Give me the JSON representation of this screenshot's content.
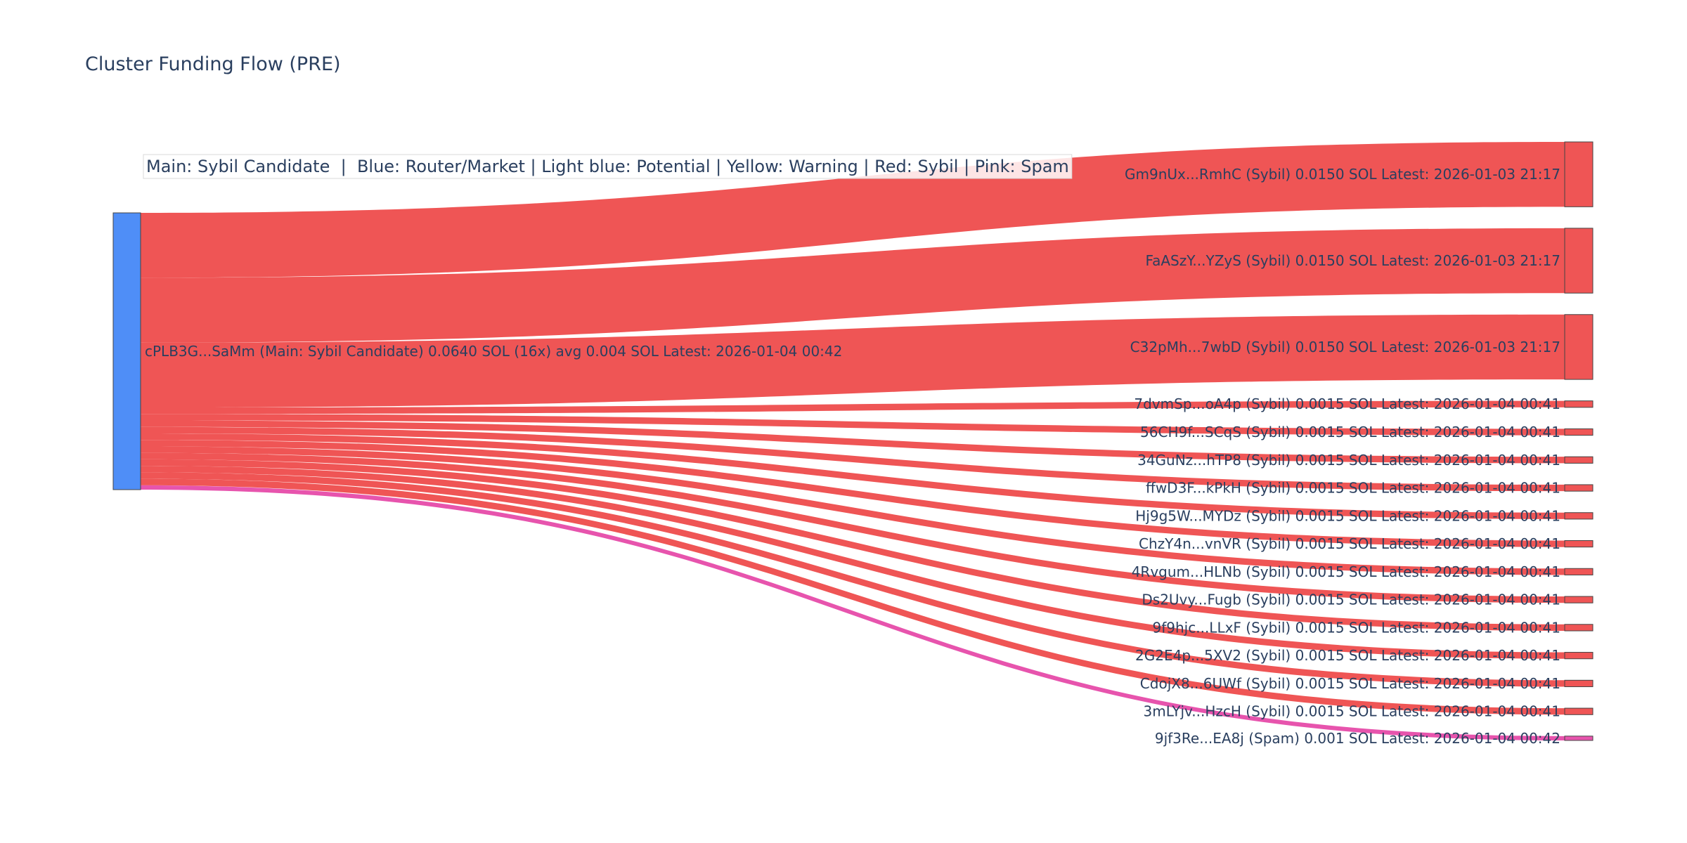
{
  "chart_data": {
    "type": "sankey",
    "title": "Cluster Funding Flow (PRE)",
    "legend_note": "Main: Sybil Candidate  |  Blue: Router/Market | Light blue: Potential | Yellow: Warning | Red: Sybil | Pink: Spam",
    "colors": {
      "main": "#4f8ef7",
      "sybil": "#ef5555",
      "spam": "#e754ad",
      "node_border": "#444444",
      "text": "#2a3f5f"
    },
    "source": {
      "id": "main",
      "label": "cPLB3G...SaMm (Main: Sybil Candidate) 0.0640 SOL (16x) avg 0.004 SOL Latest: 2026-01-04 00:42",
      "category": "main"
    },
    "targets": [
      {
        "label": "Gm9nUx...RmhC (Sybil) 0.0150 SOL Latest: 2026-01-03 21:17",
        "value": 0.015,
        "category": "sybil"
      },
      {
        "label": "FaASzY...YZyS (Sybil) 0.0150 SOL Latest: 2026-01-03 21:17",
        "value": 0.015,
        "category": "sybil"
      },
      {
        "label": "C32pMh...7wbD (Sybil) 0.0150 SOL Latest: 2026-01-03 21:17",
        "value": 0.015,
        "category": "sybil"
      },
      {
        "label": "7dvmSp...oA4p (Sybil) 0.0015 SOL Latest: 2026-01-04 00:41",
        "value": 0.0015,
        "category": "sybil"
      },
      {
        "label": "56CH9f...SCqS (Sybil) 0.0015 SOL Latest: 2026-01-04 00:41",
        "value": 0.0015,
        "category": "sybil"
      },
      {
        "label": "34GuNz...hTP8 (Sybil) 0.0015 SOL Latest: 2026-01-04 00:41",
        "value": 0.0015,
        "category": "sybil"
      },
      {
        "label": "ffwD3F...kPkH (Sybil) 0.0015 SOL Latest: 2026-01-04 00:41",
        "value": 0.0015,
        "category": "sybil"
      },
      {
        "label": "Hj9g5W...MYDz (Sybil) 0.0015 SOL Latest: 2026-01-04 00:41",
        "value": 0.0015,
        "category": "sybil"
      },
      {
        "label": "ChzY4n...vnVR (Sybil) 0.0015 SOL Latest: 2026-01-04 00:41",
        "value": 0.0015,
        "category": "sybil"
      },
      {
        "label": "4Rvgum...HLNb (Sybil) 0.0015 SOL Latest: 2026-01-04 00:41",
        "value": 0.0015,
        "category": "sybil"
      },
      {
        "label": "Ds2Uvy...Fugb (Sybil) 0.0015 SOL Latest: 2026-01-04 00:41",
        "value": 0.0015,
        "category": "sybil"
      },
      {
        "label": "9f9hjc...LLxF (Sybil) 0.0015 SOL Latest: 2026-01-04 00:41",
        "value": 0.0015,
        "category": "sybil"
      },
      {
        "label": "2G2E4p...5XV2 (Sybil) 0.0015 SOL Latest: 2026-01-04 00:41",
        "value": 0.0015,
        "category": "sybil"
      },
      {
        "label": "CdojX8...6UWf (Sybil) 0.0015 SOL Latest: 2026-01-04 00:41",
        "value": 0.0015,
        "category": "sybil"
      },
      {
        "label": "3mLYjv...HzcH (Sybil) 0.0015 SOL Latest: 2026-01-04 00:41",
        "value": 0.0015,
        "category": "sybil"
      },
      {
        "label": "9jf3Re...EA8j (Spam) 0.001 SOL Latest: 2026-01-04 00:42",
        "value": 0.001,
        "category": "spam"
      }
    ]
  }
}
